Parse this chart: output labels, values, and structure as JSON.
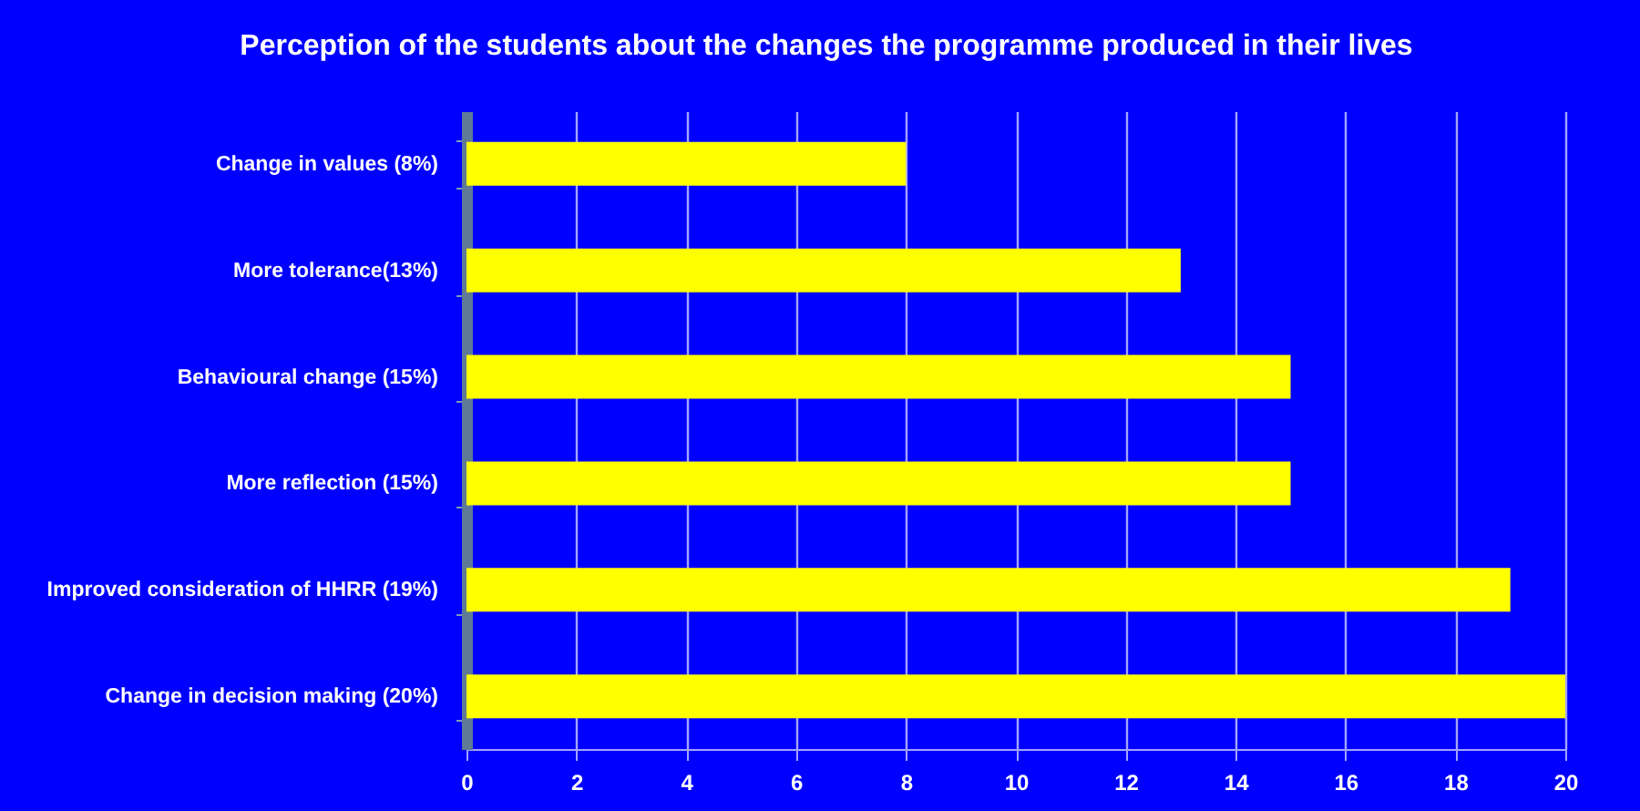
{
  "chart_data": {
    "type": "bar",
    "orientation": "horizontal",
    "title": "Perception of the students about the changes the programme produced in their lives",
    "categories": [
      "Change in values (8%)",
      "More tolerance(13%)",
      "Behavioural change (15%)",
      "More reflection (15%)",
      "Improved consideration of HHRR (19%)",
      "Change in decision making (20%)"
    ],
    "values": [
      8,
      13,
      15,
      15,
      19,
      20
    ],
    "color": "#ffff00",
    "xlim": [
      0,
      20
    ],
    "xticks": [
      0,
      2,
      4,
      6,
      8,
      10,
      12,
      14,
      16,
      18,
      20
    ],
    "grid": "x"
  }
}
